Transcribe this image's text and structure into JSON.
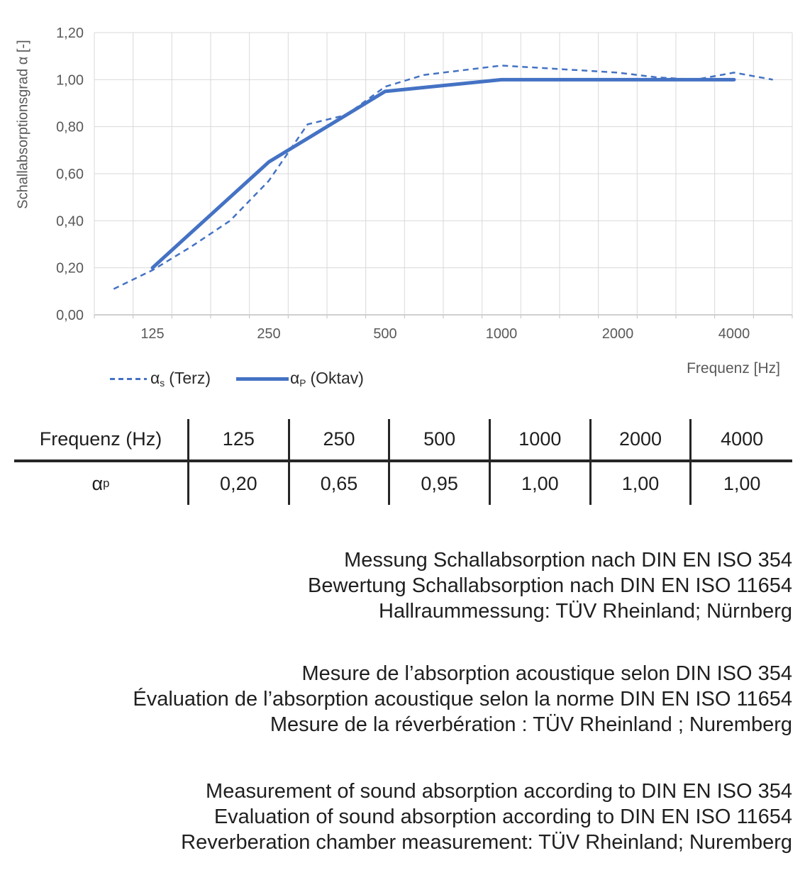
{
  "chart_data": {
    "type": "line",
    "x_categories": [
      "100",
      "125",
      "160",
      "200",
      "250",
      "315",
      "400",
      "500",
      "630",
      "800",
      "1000",
      "1250",
      "1600",
      "2000",
      "2500",
      "3150",
      "4000",
      "5000"
    ],
    "x_tick_labels": [
      "125",
      "250",
      "500",
      "1000",
      "2000",
      "4000"
    ],
    "y_ticks": [
      "0,00",
      "0,20",
      "0,40",
      "0,60",
      "0,80",
      "1,00",
      "1,20"
    ],
    "ylim": [
      0,
      1.2
    ],
    "xlabel": "Frequenz [Hz]",
    "ylabel": "Schallabsorptionsgrad α [-]",
    "grid": true,
    "legend_position": "bottom-left",
    "series": [
      {
        "name": "αs (Terz)",
        "style": "dashed",
        "values": [
          0.11,
          0.19,
          0.29,
          0.4,
          0.57,
          0.81,
          0.85,
          0.97,
          1.02,
          1.04,
          1.06,
          1.05,
          1.04,
          1.03,
          1.01,
          1.0,
          1.03,
          1.0
        ]
      },
      {
        "name": "αP (Oktav)",
        "style": "solid",
        "values": [
          null,
          0.2,
          null,
          null,
          0.65,
          null,
          null,
          0.95,
          null,
          null,
          1.0,
          null,
          null,
          1.0,
          null,
          null,
          1.0,
          null
        ]
      }
    ],
    "colors": {
      "series_blue": "#4472C4",
      "gridline": "#D9D9D9",
      "axis_line": "#BFBFBF",
      "axis_text": "#595959"
    }
  },
  "legend": {
    "items": [
      {
        "symbol": "α",
        "subscript": "s",
        "label": "(Terz)"
      },
      {
        "symbol": "α",
        "subscript": "P",
        "label": "(Oktav)"
      }
    ]
  },
  "table": {
    "header": [
      "Frequenz (Hz)",
      "125",
      "250",
      "500",
      "1000",
      "2000",
      "4000"
    ],
    "row_label": {
      "symbol": "α",
      "subscript": "p"
    },
    "values": [
      "0,20",
      "0,65",
      "0,95",
      "1,00",
      "1,00",
      "1,00"
    ]
  },
  "notes": {
    "de": [
      "Messung Schallabsorption nach DIN EN ISO 354",
      "Bewertung Schallabsorption nach DIN EN ISO 11654",
      "Hallraummessung: TÜV Rheinland; Nürnberg"
    ],
    "fr": [
      "Mesure de l’absorption acoustique selon DIN ISO 354",
      "Évaluation de l’absorption acoustique selon la norme DIN EN ISO 11654",
      "Mesure de la réverbération : TÜV Rheinland ; Nuremberg"
    ],
    "en": [
      "Measurement of sound absorption according to DIN EN ISO 354",
      "Evaluation of sound absorption according to DIN EN ISO 11654",
      "Reverberation chamber measurement: TÜV Rheinland; Nuremberg"
    ]
  }
}
